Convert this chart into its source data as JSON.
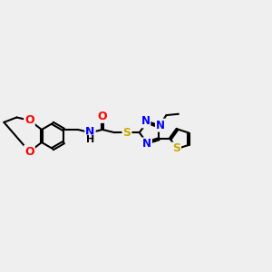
{
  "bg_color": "#efefef",
  "bond_color": "#000000",
  "bond_width": 1.5,
  "atom_colors": {
    "O": "#ff0000",
    "N": "#0000ff",
    "S": "#ccaa00",
    "C": "#000000",
    "H": "#000000"
  },
  "font_size": 9,
  "figsize": [
    3.0,
    3.0
  ],
  "dpi": 100,
  "xlim": [
    -5.4,
    5.6
  ],
  "ylim": [
    -2.5,
    2.5
  ]
}
